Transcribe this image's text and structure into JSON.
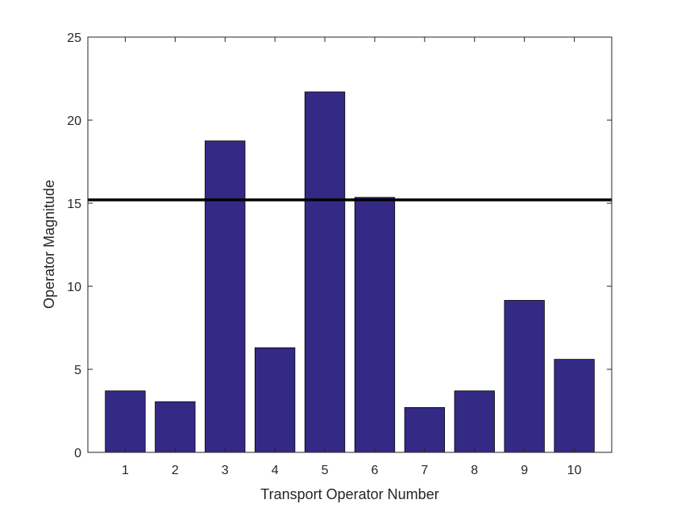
{
  "chart_data": {
    "type": "bar",
    "title": "",
    "xlabel": "Transport Operator Number",
    "ylabel": "Operator Magnitude",
    "categories": [
      "1",
      "2",
      "3",
      "4",
      "5",
      "6",
      "7",
      "8",
      "9",
      "10"
    ],
    "values": [
      3.7,
      3.05,
      18.75,
      6.3,
      21.7,
      15.35,
      2.7,
      3.7,
      9.15,
      5.6
    ],
    "ylim": [
      0,
      25
    ],
    "yticks": [
      "0",
      "5",
      "10",
      "15",
      "20",
      "25"
    ],
    "threshold": 15.2,
    "bar_color": "#342a86",
    "threshold_color": "#000000",
    "grid": false,
    "legend": "none"
  }
}
